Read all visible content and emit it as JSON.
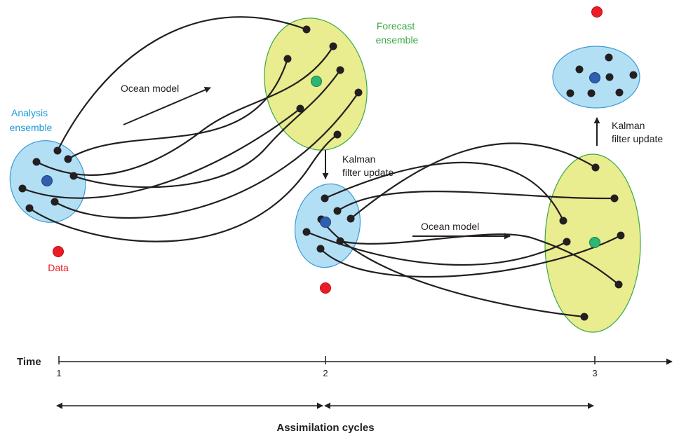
{
  "labels": {
    "analysis_ensemble": [
      "Analysis",
      "ensemble"
    ],
    "forecast_ensemble": [
      "Forecast",
      "ensemble"
    ],
    "ocean_model": "Ocean model",
    "kalman_update": [
      "Kalman",
      "filter update"
    ],
    "data": "Data",
    "time": "Time",
    "ticks": [
      "1",
      "2",
      "3"
    ],
    "assimilation_cycles": "Assimilation cycles"
  },
  "colors": {
    "analysis_fill": "#b3dff5",
    "analysis_stroke": "#3d9ad6",
    "forecast_fill": "#e9ec8f",
    "forecast_stroke": "#3aa845",
    "member": "#231f20",
    "mean_analysis": "#2f5fae",
    "mean_forecast": "#2bb673",
    "data_point": "#ed1c24",
    "analysis_text": "#1b9ad6",
    "forecast_text": "#3aa845",
    "data_text": "#ed1c24"
  },
  "icons": {
    "ensemble_member": "black-dot",
    "ensemble_mean": "circle",
    "observation": "red-dot",
    "arrow": "arrow"
  }
}
